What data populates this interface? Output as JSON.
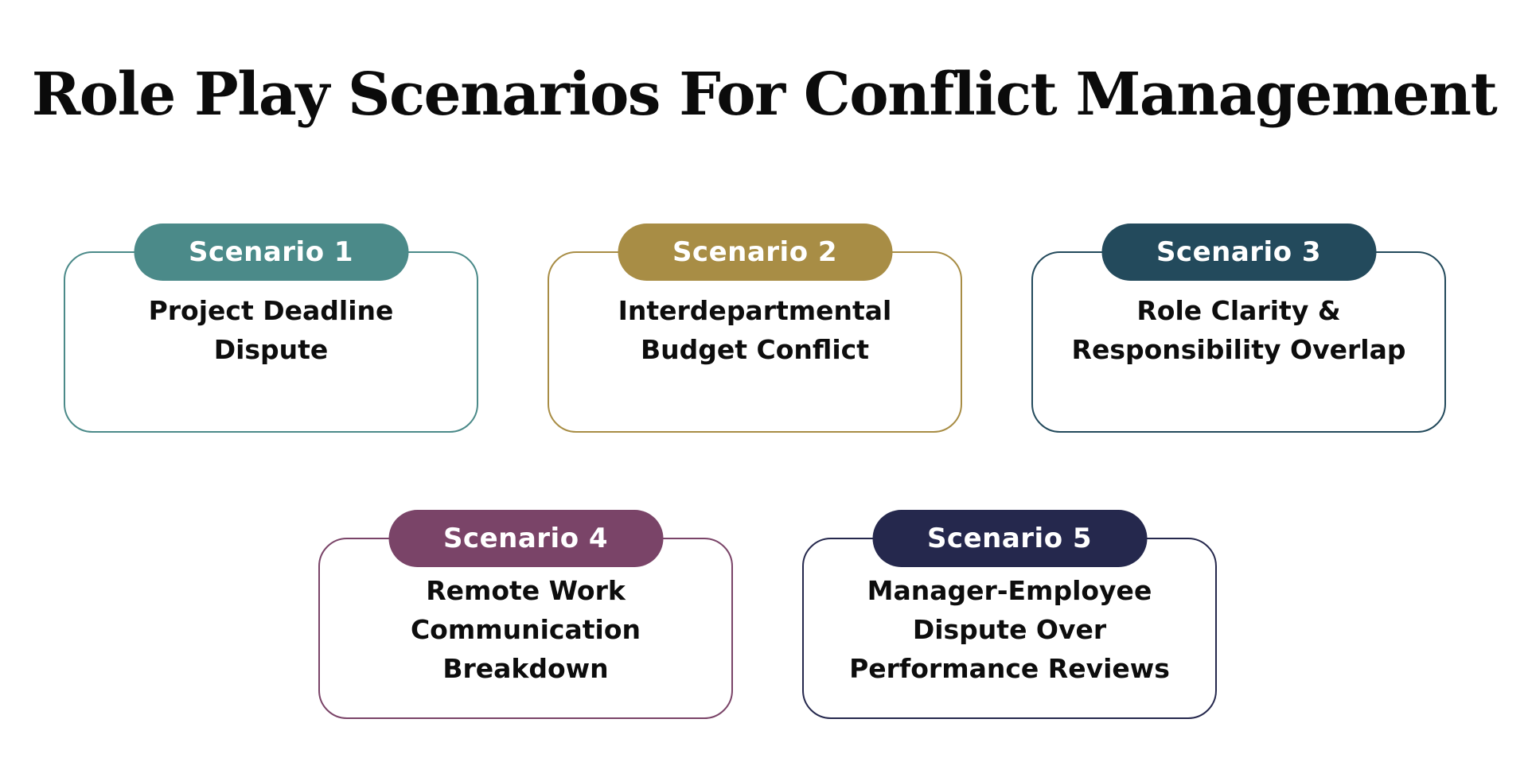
{
  "title": "Role Play Scenarios For Conflict Management",
  "scenarios": [
    {
      "label": "Scenario 1",
      "text": "Project Deadline Dispute",
      "color": "#4b8a89"
    },
    {
      "label": "Scenario 2",
      "text": "Interdepartmental Budget Conflict",
      "color": "#a88d45"
    },
    {
      "label": "Scenario 3",
      "text": "Role Clarity & Responsibility Overlap",
      "color": "#234a5c"
    },
    {
      "label": "Scenario 4",
      "text": "Remote Work Communication Breakdown",
      "color": "#7a4468"
    },
    {
      "label": "Scenario 5",
      "text": "Manager-Employee Dispute Over Performance Reviews",
      "color": "#25284d"
    }
  ]
}
